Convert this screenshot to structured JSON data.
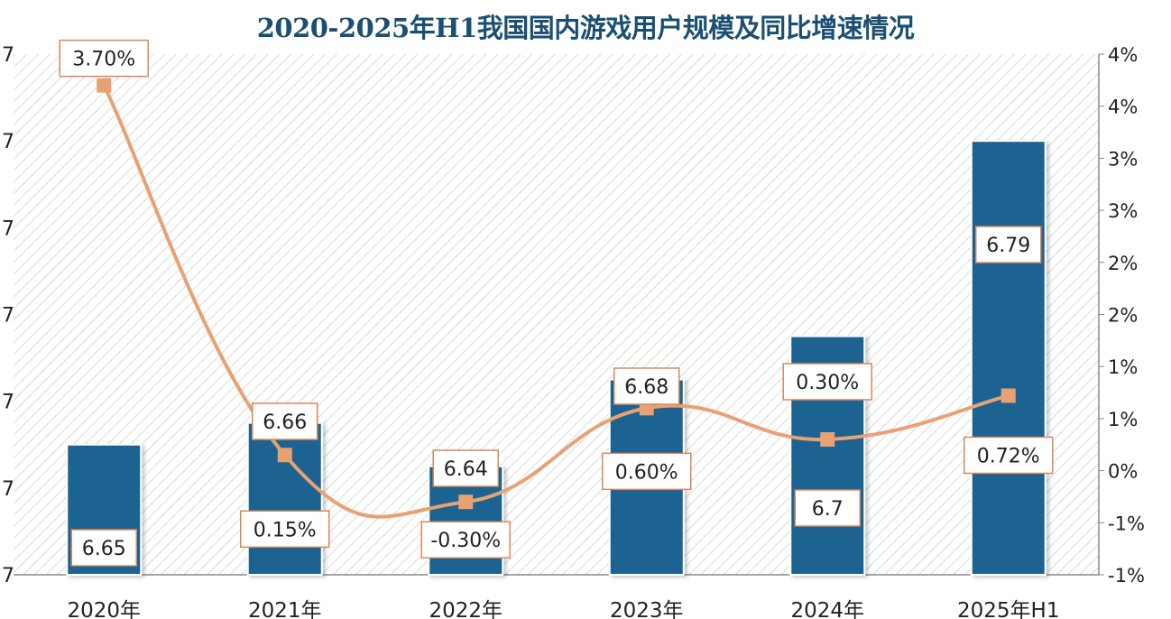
{
  "chart_data": {
    "type": "bar+line",
    "title": "2020-2025年H1我国国内游戏用户规模及同比增速情况",
    "categories": [
      "2020年",
      "2021年",
      "2022年",
      "2023年",
      "2024年",
      "2025年H1"
    ],
    "series": [
      {
        "kind": "bar",
        "axis": "left",
        "values": [
          6.65,
          6.66,
          6.64,
          6.68,
          6.7,
          6.79
        ],
        "labels": [
          "6.65",
          "6.66",
          "6.64",
          "6.68",
          "6.7",
          "6.79"
        ]
      },
      {
        "kind": "line",
        "axis": "right",
        "values": [
          3.7,
          0.15,
          -0.3,
          0.6,
          0.3,
          0.72
        ],
        "labels": [
          "3.70%",
          "0.15%",
          "-0.30%",
          "0.60%",
          "0.30%",
          "0.72%"
        ]
      }
    ],
    "left_axis": {
      "tick_labels": [
        "7",
        "7",
        "7",
        "7",
        "7",
        "7",
        "7"
      ],
      "ylim": [
        6.59,
        6.83
      ]
    },
    "right_axis": {
      "tick_labels": [
        "4%",
        "4%",
        "3%",
        "3%",
        "2%",
        "2%",
        "1%",
        "1%",
        "0%",
        "-1%",
        "-1%"
      ],
      "ylim": [
        -1.0,
        4.0
      ]
    },
    "grid": false,
    "background": "hatched",
    "colors": {
      "bar": "#1f6391",
      "line": "#e8a173",
      "title": "#1b4f72",
      "label_border": "#d9885a"
    }
  }
}
